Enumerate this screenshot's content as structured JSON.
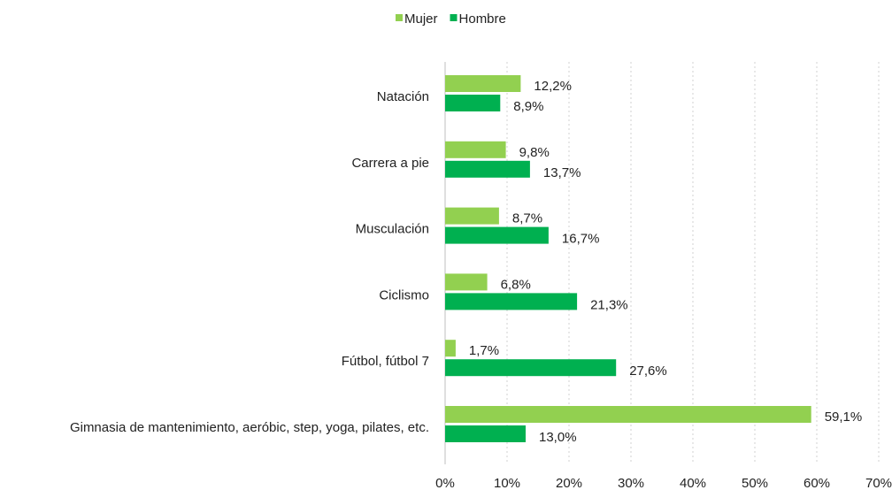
{
  "chart_data": {
    "type": "hbar",
    "categories": [
      "Natación",
      "Carrera a pie",
      "Musculación",
      "Ciclismo",
      "Fútbol, fútbol 7",
      "Gimnasia de mantenimiento, aeróbic, step, yoga, pilates, etc."
    ],
    "series": [
      {
        "name": "Mujer",
        "color": "#92d050",
        "values": [
          12.2,
          9.8,
          8.7,
          6.8,
          1.7,
          59.1
        ],
        "value_labels": [
          "12,2%",
          "9,8%",
          "8,7%",
          "6,8%",
          "1,7%",
          "59,1%"
        ]
      },
      {
        "name": "Hombre",
        "color": "#00b050",
        "values": [
          8.9,
          13.7,
          16.7,
          21.3,
          27.6,
          13.0
        ],
        "value_labels": [
          "8,9%",
          "13,7%",
          "16,7%",
          "21,3%",
          "27,6%",
          "13,0%"
        ]
      }
    ],
    "xlim": [
      0,
      70
    ],
    "xticks": [
      {
        "value": 0,
        "label": "0%"
      },
      {
        "value": 10,
        "label": "10%"
      },
      {
        "value": 20,
        "label": "20%"
      },
      {
        "value": 30,
        "label": "30%"
      },
      {
        "value": 40,
        "label": "40%"
      },
      {
        "value": 50,
        "label": "50%"
      },
      {
        "value": 60,
        "label": "60%"
      },
      {
        "value": 70,
        "label": "70%"
      }
    ],
    "grid": true,
    "legend": "top"
  }
}
